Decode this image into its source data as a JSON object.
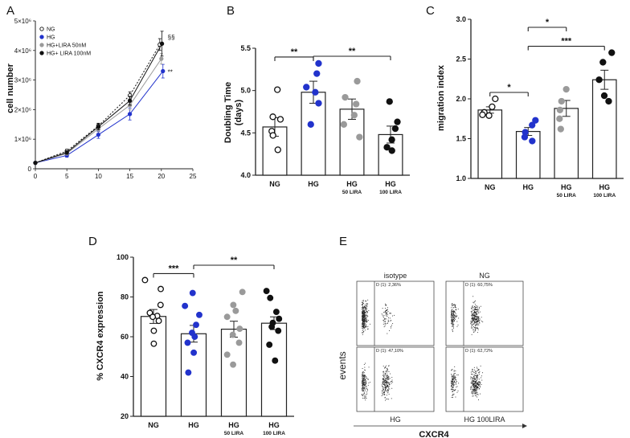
{
  "panels": {
    "A": {
      "letter": "A"
    },
    "B": {
      "letter": "B"
    },
    "C": {
      "letter": "C"
    },
    "D": {
      "letter": "D"
    },
    "E": {
      "letter": "E"
    }
  },
  "chart_data": [
    {
      "panel": "A",
      "type": "line",
      "title": "",
      "xlabel": "",
      "ylabel": "cell number",
      "x": [
        0,
        5,
        10,
        15,
        20
      ],
      "xlim": [
        0,
        25
      ],
      "xticks": [
        "0",
        "5",
        "10",
        "15",
        "20",
        "25"
      ],
      "ylim": [
        0,
        5000000
      ],
      "yticks": [
        {
          "value": 1000000,
          "label": "1×10⁶"
        },
        {
          "value": 2000000,
          "label": "2×10⁶"
        },
        {
          "value": 3000000,
          "label": "3×10⁶"
        },
        {
          "value": 4000000,
          "label": "4×10⁶"
        },
        {
          "value": 5000000,
          "label": "5×10⁶"
        }
      ],
      "series": [
        {
          "name": "NG",
          "color": "#111111",
          "marker": "open",
          "dashed": true,
          "values": [
            200000,
            600000,
            1450000,
            2480000,
            4200000
          ],
          "errors": [
            30000,
            60000,
            90000,
            120000,
            200000
          ]
        },
        {
          "name": "HG",
          "color": "#2233cc",
          "marker": "filled",
          "dashed": false,
          "values": [
            200000,
            450000,
            1150000,
            1850000,
            3300000
          ],
          "errors": [
            30000,
            60000,
            120000,
            200000,
            230000
          ]
        },
        {
          "name": "HG+LIRA 50nM",
          "color": "#9a9a9a",
          "marker": "filled",
          "dashed": false,
          "values": [
            200000,
            520000,
            1350000,
            2150000,
            3720000
          ],
          "errors": [
            30000,
            60000,
            100000,
            160000,
            180000
          ]
        },
        {
          "name": "HG+ LIRA 100nM",
          "color": "#111111",
          "marker": "filled",
          "dashed": false,
          "values": [
            200000,
            550000,
            1420000,
            2300000,
            4230000
          ],
          "errors": [
            30000,
            60000,
            100000,
            150000,
            420000
          ]
        }
      ],
      "annotations": [
        "§§",
        "**"
      ],
      "legend": "top-left"
    },
    {
      "panel": "B",
      "type": "bar",
      "ylabel_lines": [
        "Doubling Time",
        "(days)"
      ],
      "ylim": [
        4.0,
        5.5
      ],
      "yticks": [
        "4.0",
        "4.5",
        "5.0",
        "5.5"
      ],
      "categories": [
        {
          "main": "NG",
          "sub": ""
        },
        {
          "main": "HG",
          "sub": ""
        },
        {
          "main": "HG",
          "sub": "50 LIRA"
        },
        {
          "main": "HG",
          "sub": "100 LIRA"
        }
      ],
      "values": [
        4.57,
        4.98,
        4.78,
        4.48
      ],
      "errors": [
        0.11,
        0.13,
        0.12,
        0.1
      ],
      "points": [
        [
          5.01,
          4.69,
          4.66,
          4.52,
          4.47,
          4.3
        ],
        [
          5.32,
          5.2,
          5.04,
          4.98,
          4.85,
          4.6
        ],
        [
          5.11,
          4.92,
          4.84,
          4.71,
          4.6,
          4.45
        ],
        [
          4.87,
          4.63,
          4.55,
          4.42,
          4.33,
          4.29
        ]
      ],
      "point_style": [
        {
          "fill": "#ffffff",
          "stroke": "#111111"
        },
        {
          "fill": "#2233cc",
          "stroke": "#2233cc"
        },
        {
          "fill": "#9a9a9a",
          "stroke": "#9a9a9a"
        },
        {
          "fill": "#111111",
          "stroke": "#111111"
        }
      ],
      "significance": [
        {
          "from": 0,
          "to": 1,
          "label": "**"
        },
        {
          "from": 1,
          "to": 3,
          "label": "**"
        }
      ]
    },
    {
      "panel": "C",
      "type": "bar",
      "ylabel_lines": [
        "migration index"
      ],
      "ylim": [
        1.0,
        3.0
      ],
      "yticks": [
        "1.0",
        "1.5",
        "2.0",
        "2.5",
        "3.0"
      ],
      "categories": [
        {
          "main": "NG",
          "sub": ""
        },
        {
          "main": "HG",
          "sub": ""
        },
        {
          "main": "HG",
          "sub": "50 LIRA"
        },
        {
          "main": "HG",
          "sub": "100 LIRA"
        }
      ],
      "values": [
        1.86,
        1.59,
        1.88,
        2.24
      ],
      "errors": [
        0.04,
        0.05,
        0.1,
        0.12
      ],
      "points": [
        [
          2.0,
          1.9,
          1.83,
          1.8,
          1.79
        ],
        [
          1.73,
          1.67,
          1.58,
          1.52,
          1.47
        ],
        [
          2.12,
          1.97,
          1.86,
          1.75,
          1.62
        ],
        [
          2.58,
          2.46,
          2.24,
          2.04,
          1.97
        ]
      ],
      "point_style": [
        {
          "fill": "#ffffff",
          "stroke": "#111111"
        },
        {
          "fill": "#2233cc",
          "stroke": "#2233cc"
        },
        {
          "fill": "#9a9a9a",
          "stroke": "#9a9a9a"
        },
        {
          "fill": "#111111",
          "stroke": "#111111"
        }
      ],
      "significance": [
        {
          "from": 0,
          "to": 1,
          "label": "*"
        },
        {
          "from": 1,
          "to": 2,
          "label": "*"
        },
        {
          "from": 1,
          "to": 3,
          "label": "***"
        }
      ]
    },
    {
      "panel": "D",
      "type": "bar",
      "ylabel_lines": [
        "% CXCR4 expression"
      ],
      "ylim": [
        20,
        100
      ],
      "yticks": [
        "20",
        "40",
        "60",
        "80",
        "100"
      ],
      "categories": [
        {
          "main": "NG",
          "sub": ""
        },
        {
          "main": "HG",
          "sub": ""
        },
        {
          "main": "HG",
          "sub": "50 LIRA"
        },
        {
          "main": "HG",
          "sub": "100 LIRA"
        }
      ],
      "values": [
        70.2,
        61.5,
        63.8,
        66.8
      ],
      "errors": [
        3.5,
        4.2,
        4.0,
        3.2
      ],
      "points": [
        [
          88.5,
          84.0,
          76.0,
          72.0,
          70.5,
          70.0,
          68.0,
          63.0,
          56.5
        ],
        [
          82.0,
          75.5,
          71.0,
          66.0,
          62.0,
          60.0,
          57.0,
          52.0,
          42.0
        ],
        [
          82.5,
          76.0,
          73.0,
          70.0,
          64.0,
          61.0,
          57.0,
          51.0,
          46.0
        ],
        [
          83.0,
          79.5,
          72.5,
          69.0,
          67.0,
          65.0,
          63.0,
          56.0,
          48.0
        ]
      ],
      "point_style": [
        {
          "fill": "#ffffff",
          "stroke": "#111111"
        },
        {
          "fill": "#2233cc",
          "stroke": "#2233cc"
        },
        {
          "fill": "#9a9a9a",
          "stroke": "#9a9a9a"
        },
        {
          "fill": "#111111",
          "stroke": "#111111"
        }
      ],
      "significance": [
        {
          "from": 0,
          "to": 1,
          "label": "***"
        },
        {
          "from": 1,
          "to": 3,
          "label": "**"
        }
      ]
    }
  ],
  "flow": {
    "ylabel": "events",
    "xlabel": "CXCR4",
    "plots": [
      {
        "title": "isotype",
        "bottom_label": "",
        "gate": "D (1): 2,36%"
      },
      {
        "title": "NG",
        "bottom_label": "",
        "gate": "D (1): 60,75%"
      },
      {
        "title": "",
        "bottom_label": "HG",
        "gate": "D (1): 47,10%"
      },
      {
        "title": "",
        "bottom_label": "HG 100LIRA",
        "gate": "D (1): 62,72%"
      }
    ]
  }
}
